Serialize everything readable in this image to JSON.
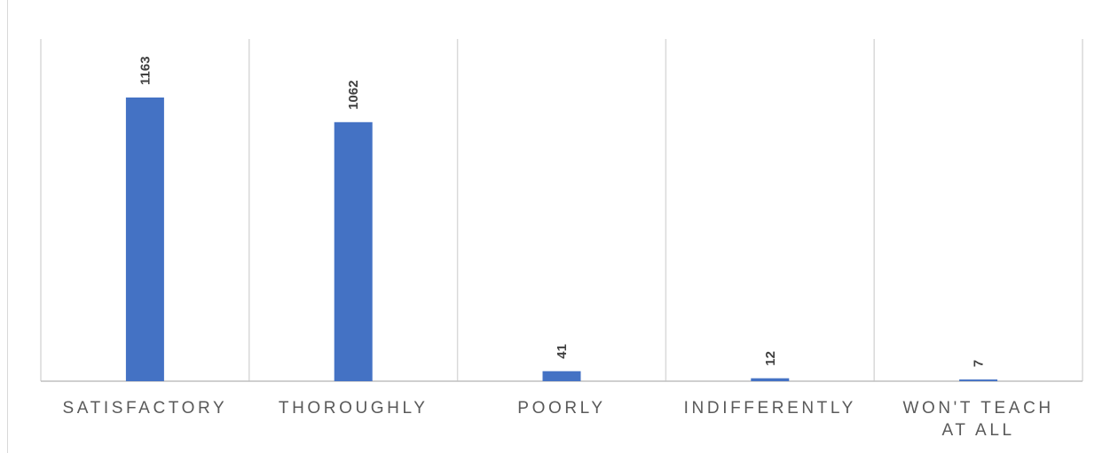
{
  "chart_data": {
    "type": "bar",
    "categories": [
      "SATISFACTORY",
      "THOROUGHLY",
      "POORLY",
      "INDIFFERENTLY",
      "WON'T TEACH AT ALL"
    ],
    "category_lines": [
      [
        "SATISFACTORY"
      ],
      [
        "THOROUGHLY"
      ],
      [
        "POORLY"
      ],
      [
        "INDIFFERENTLY"
      ],
      [
        "WON'T TEACH",
        "AT ALL"
      ]
    ],
    "values": [
      1163,
      1062,
      41,
      12,
      7
    ],
    "data_labels": [
      "1163",
      "1062",
      "41",
      "12",
      "7"
    ],
    "ylim": [
      0,
      1400
    ],
    "grid": "vertical separators between categories",
    "legend": "none",
    "colors": {
      "bar": "#4472c4",
      "gridline": "#d9d9d9",
      "axis_line": "#bfbfbf",
      "category_text": "#595959",
      "value_text": "#404040"
    }
  }
}
